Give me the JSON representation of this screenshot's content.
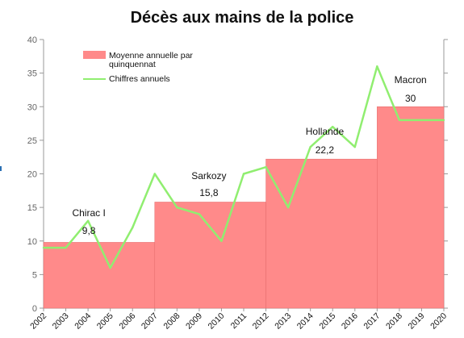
{
  "chart_data": {
    "type": "bar",
    "title": "Décès aux mains de la police",
    "ylim": [
      0,
      40
    ],
    "yticks": [
      0,
      5,
      10,
      15,
      20,
      25,
      30,
      35,
      40
    ],
    "x_years": [
      "2002",
      "2003",
      "2004",
      "2005",
      "2006",
      "2007",
      "2008",
      "2009",
      "2010",
      "2011",
      "2012",
      "2013",
      "2014",
      "2015",
      "2016",
      "2017",
      "2018",
      "2019",
      "2020"
    ],
    "legend_position": "top-left",
    "colors": {
      "bars": "#ff8a8a",
      "line": "#90ee70",
      "axis": "#999999"
    },
    "series": [
      {
        "name": "Moyenne annuelle par quinquennat",
        "type": "bar",
        "segments": [
          {
            "start": "2002",
            "end": "2006",
            "value": 9.8
          },
          {
            "start": "2007",
            "end": "2011",
            "value": 15.8
          },
          {
            "start": "2012",
            "end": "2016",
            "value": 22.2
          },
          {
            "start": "2017",
            "end": "2020",
            "value": 30
          }
        ]
      },
      {
        "name": "Chiffres annuels",
        "type": "line",
        "x": [
          "2002",
          "2003",
          "2004",
          "2005",
          "2006",
          "2007",
          "2008",
          "2009",
          "2010",
          "2011",
          "2012",
          "2013",
          "2014",
          "2015",
          "2016",
          "2017",
          "2018",
          "2019",
          "2020"
        ],
        "values": [
          9,
          9,
          13,
          6,
          12,
          20,
          15,
          14,
          10,
          20,
          21,
          15,
          24,
          27,
          24,
          36,
          28,
          28,
          28
        ]
      }
    ],
    "annotations": [
      {
        "label": "Chirac I",
        "value_label": "9,8",
        "year": "2004"
      },
      {
        "label": "Sarkozy",
        "value_label": "15,8",
        "year": "2009"
      },
      {
        "label": "Hollande",
        "value_label": "22,2",
        "year": "2014.5"
      },
      {
        "label": "Macron",
        "value_label": "30",
        "year": "2018.5"
      }
    ]
  }
}
